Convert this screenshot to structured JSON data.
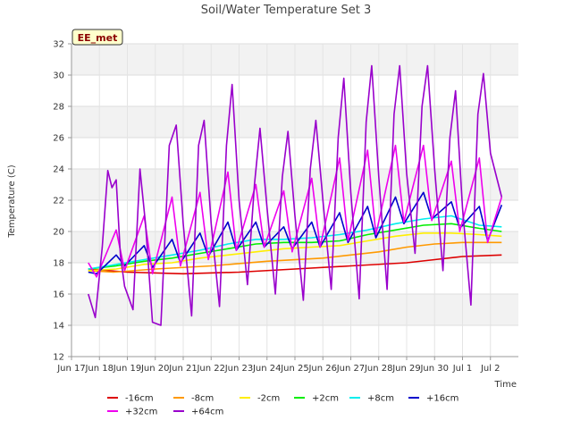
{
  "chart_data": {
    "type": "line",
    "title": "Soil/Water Temperature Set 3",
    "xlabel": "Time",
    "ylabel": "Temperature (C)",
    "site_badge": "EE_met",
    "xlim": [
      0,
      16
    ],
    "ylim": [
      12,
      32
    ],
    "x_tick_labels": [
      "Jun 17",
      "Jun 18",
      "Jun 19",
      "Jun 20",
      "Jun 21",
      "Jun 22",
      "Jun 23",
      "Jun 24",
      "Jun 25",
      "Jun 26",
      "Jun 27",
      "Jun 28",
      "Jun 29",
      "Jun 30",
      "Jul 1",
      "Jul 2"
    ],
    "y_ticks": [
      12,
      14,
      16,
      18,
      20,
      22,
      24,
      26,
      28,
      30,
      32
    ],
    "grid": "horizontal bands",
    "legend_position": "bottom",
    "x_note": "x = day offset from Jun 16 00:00; data spans ~Jun 16.6 to Jul 1.4",
    "series": [
      {
        "name": "-16cm",
        "color": "#dd0000",
        "x": [
          0.6,
          2,
          4,
          6,
          8,
          10,
          12,
          13,
          14,
          15.4
        ],
        "y": [
          17.6,
          17.4,
          17.3,
          17.4,
          17.6,
          17.8,
          18.0,
          18.2,
          18.4,
          18.5
        ]
      },
      {
        "name": "-8cm",
        "color": "#ff9900",
        "x": [
          0.6,
          1.5,
          3,
          5,
          7,
          9,
          11,
          12,
          13,
          14,
          15.4
        ],
        "y": [
          17.5,
          17.4,
          17.6,
          17.8,
          18.1,
          18.3,
          18.7,
          19.0,
          19.2,
          19.3,
          19.3
        ]
      },
      {
        "name": "-2cm",
        "color": "#ffee00",
        "x": [
          0.6,
          1.6,
          2.6,
          3.6,
          4.6,
          5.6,
          6.6,
          7.6,
          8.6,
          9.6,
          10.6,
          11.6,
          12.6,
          13.6,
          14.6,
          15.4
        ],
        "y": [
          17.5,
          17.6,
          17.9,
          18.0,
          18.3,
          18.5,
          18.7,
          18.9,
          19.0,
          19.1,
          19.4,
          19.7,
          19.9,
          19.9,
          19.8,
          19.7
        ]
      },
      {
        "name": "+2cm",
        "color": "#00ee00",
        "x": [
          0.6,
          1.6,
          2.6,
          3.6,
          4.6,
          5.6,
          6.6,
          7.6,
          8.6,
          9.6,
          10.6,
          11.6,
          12.6,
          13.6,
          14.6,
          15.4
        ],
        "y": [
          17.6,
          17.8,
          18.1,
          18.3,
          18.6,
          18.9,
          19.2,
          19.3,
          19.3,
          19.4,
          19.8,
          20.1,
          20.4,
          20.5,
          20.2,
          20.0
        ]
      },
      {
        "name": "+8cm",
        "color": "#00eeee",
        "x": [
          0.6,
          1.6,
          2.6,
          3.6,
          4.6,
          5.6,
          6.6,
          7.6,
          8.6,
          9.6,
          10.6,
          11.6,
          12.6,
          13.6,
          14.6,
          15.4
        ],
        "y": [
          17.6,
          17.9,
          18.2,
          18.5,
          18.8,
          19.2,
          19.5,
          19.5,
          19.6,
          19.8,
          20.1,
          20.5,
          20.8,
          21.0,
          20.4,
          20.3
        ]
      },
      {
        "name": "+16cm",
        "color": "#0000cc",
        "x": [
          0.6,
          0.9,
          1.6,
          1.9,
          2.6,
          2.9,
          3.6,
          3.9,
          4.6,
          4.9,
          5.6,
          5.9,
          6.6,
          6.9,
          7.6,
          7.9,
          8.6,
          8.9,
          9.6,
          9.9,
          10.6,
          10.9,
          11.6,
          11.9,
          12.6,
          12.9,
          13.6,
          13.9,
          14.6,
          14.9,
          15.4
        ],
        "y": [
          17.4,
          17.3,
          18.5,
          17.8,
          19.1,
          17.7,
          19.5,
          18.0,
          19.9,
          18.4,
          20.6,
          18.8,
          20.6,
          19.0,
          20.3,
          18.9,
          20.6,
          19.0,
          21.2,
          19.3,
          21.6,
          19.6,
          22.2,
          20.5,
          22.5,
          20.8,
          21.9,
          20.2,
          21.6,
          19.4,
          21.7
        ]
      },
      {
        "name": "+32cm",
        "color": "#ee00ee",
        "x": [
          0.6,
          0.9,
          1.6,
          1.9,
          2.6,
          2.9,
          3.6,
          3.9,
          4.6,
          4.9,
          5.6,
          5.9,
          6.6,
          6.9,
          7.6,
          7.9,
          8.6,
          8.9,
          9.6,
          9.9,
          10.6,
          10.9,
          11.6,
          11.9,
          12.6,
          12.9,
          13.6,
          13.9,
          14.6,
          14.9,
          15.4
        ],
        "y": [
          18.0,
          17.1,
          20.1,
          17.5,
          21.0,
          17.3,
          22.2,
          17.8,
          22.5,
          18.2,
          23.8,
          18.8,
          23.0,
          19.0,
          22.6,
          18.7,
          23.4,
          19.0,
          24.7,
          19.4,
          25.2,
          19.8,
          25.5,
          20.6,
          25.5,
          20.7,
          24.5,
          20.0,
          24.7,
          19.3,
          22.2
        ]
      },
      {
        "name": "+64cm",
        "color": "#9900cc",
        "x": [
          0.6,
          0.85,
          1.1,
          1.3,
          1.45,
          1.6,
          1.75,
          1.9,
          2.2,
          2.45,
          2.65,
          2.9,
          3.2,
          3.5,
          3.75,
          4.0,
          4.3,
          4.55,
          4.75,
          5.0,
          5.3,
          5.55,
          5.75,
          6.0,
          6.3,
          6.55,
          6.75,
          7.0,
          7.3,
          7.55,
          7.75,
          8.0,
          8.3,
          8.55,
          8.75,
          9.0,
          9.3,
          9.55,
          9.75,
          10.0,
          10.3,
          10.55,
          10.75,
          11.0,
          11.3,
          11.55,
          11.75,
          12.0,
          12.3,
          12.55,
          12.75,
          13.0,
          13.3,
          13.55,
          13.75,
          14.0,
          14.3,
          14.55,
          14.75,
          15.0,
          15.4
        ],
        "y": [
          16.0,
          14.5,
          19.0,
          23.9,
          22.8,
          23.3,
          18.5,
          16.5,
          15.0,
          24.0,
          20.5,
          14.2,
          14.0,
          25.5,
          26.8,
          20.5,
          14.6,
          25.5,
          27.1,
          20.5,
          15.2,
          25.5,
          29.4,
          22.0,
          16.6,
          23.0,
          26.6,
          21.5,
          16.0,
          23.5,
          26.4,
          21.0,
          15.6,
          24.0,
          27.1,
          22.0,
          16.3,
          26.0,
          29.8,
          22.5,
          15.7,
          27.0,
          30.6,
          23.5,
          16.3,
          27.5,
          30.6,
          23.7,
          18.6,
          28.0,
          30.6,
          24.0,
          17.5,
          26.0,
          29.0,
          21.5,
          15.3,
          27.5,
          30.1,
          25.0,
          22.2
        ]
      }
    ]
  }
}
